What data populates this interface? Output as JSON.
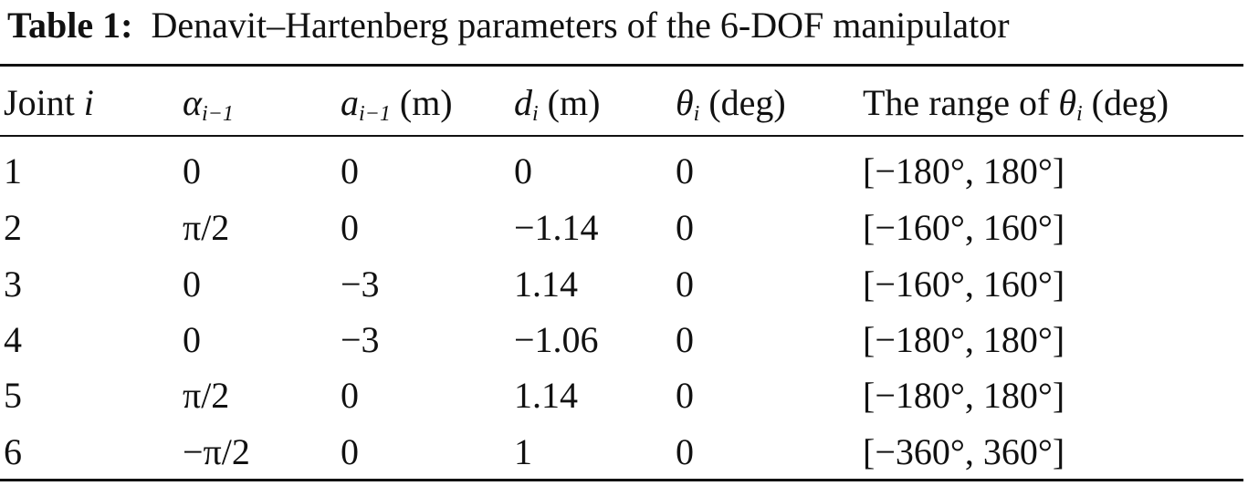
{
  "title": {
    "label": "Table 1:",
    "text": "Denavit–Hartenberg parameters of the 6-DOF manipulator"
  },
  "table": {
    "header": [
      [
        "Joint",
        "i"
      ],
      [
        "α",
        "i−1"
      ],
      [
        "a",
        "i−1",
        "(m)"
      ],
      [
        "d",
        "i",
        "(m)"
      ],
      [
        "θ",
        "i",
        "(deg)"
      ],
      [
        "The range of",
        "θ",
        "i",
        "(deg)"
      ]
    ],
    "rows": [
      [
        "1",
        "0",
        "0",
        "0",
        "0",
        "[−180°, 180°]"
      ],
      [
        "2",
        "π/2",
        "0",
        "−1.14",
        "0",
        "[−160°, 160°]"
      ],
      [
        "3",
        "0",
        "−3",
        "1.14",
        "0",
        "[−160°, 160°]"
      ],
      [
        "4",
        "0",
        "−3",
        "−1.06",
        "0",
        "[−180°, 180°]"
      ],
      [
        "5",
        "π/2",
        "0",
        "1.14",
        "0",
        "[−180°, 180°]"
      ],
      [
        "6",
        "−π/2",
        "0",
        "1",
        "0",
        "[−360°, 360°]"
      ]
    ]
  }
}
